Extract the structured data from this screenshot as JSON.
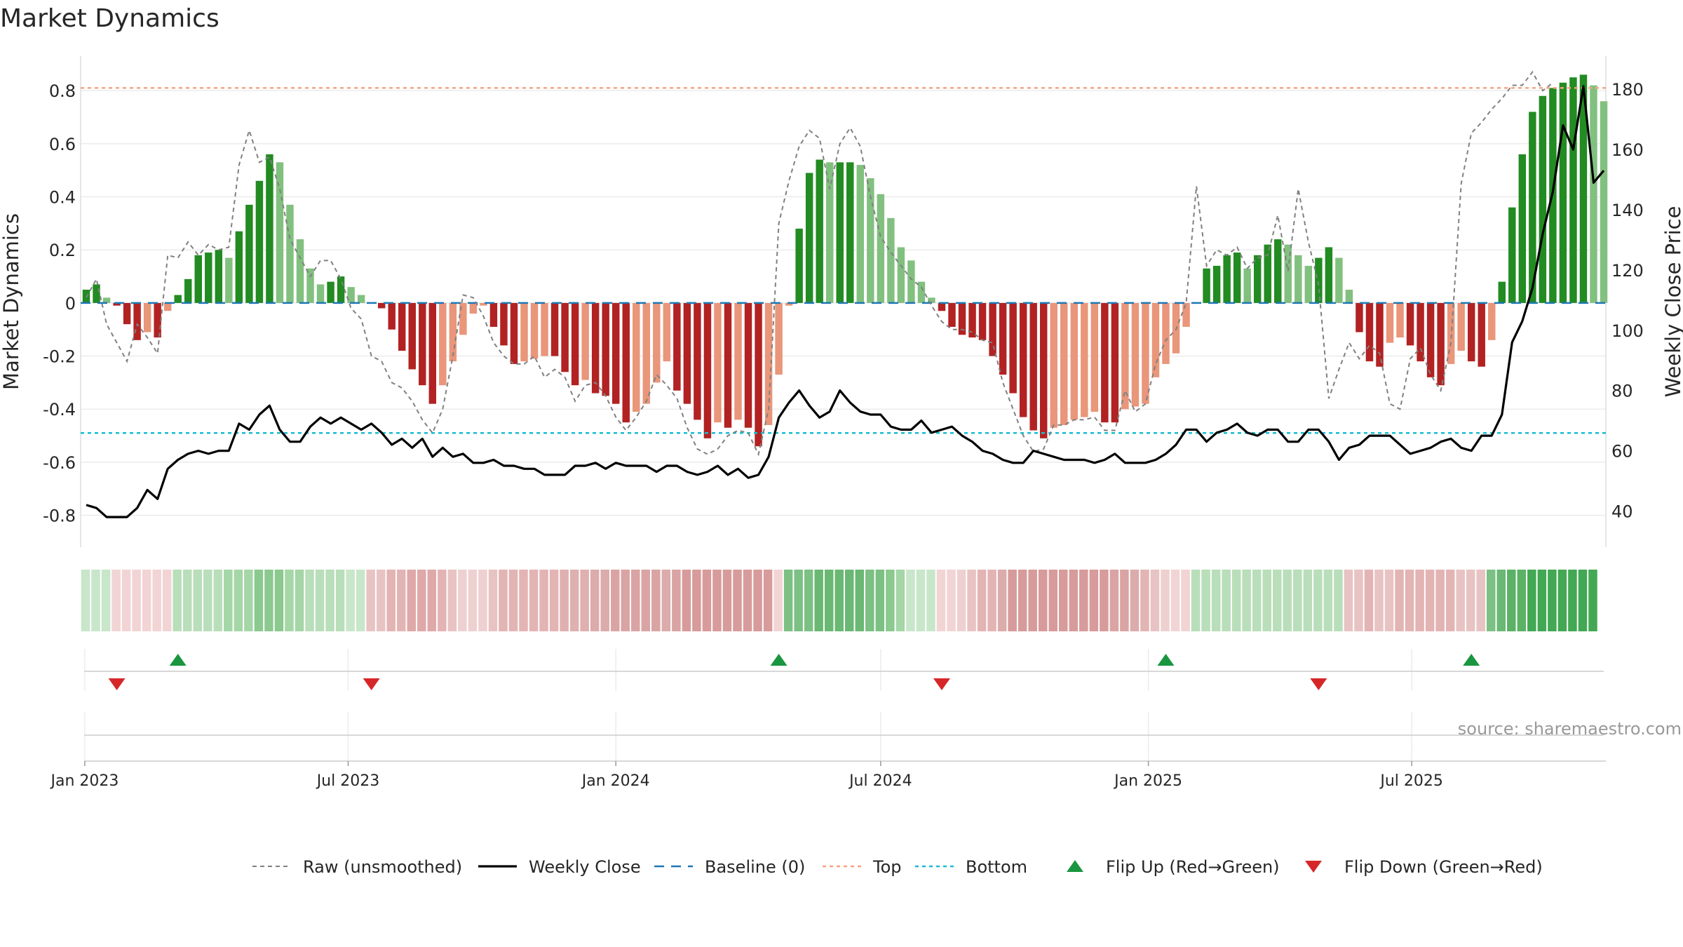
{
  "chart_data": {
    "type": "bar",
    "title": "Market Dynamics",
    "ylabel": "Market Dynamics",
    "y2label": "Weekly Close Price",
    "source": "source: sharemaestro.com",
    "ylim": [
      -0.92,
      0.93
    ],
    "y2lim": [
      28,
      191
    ],
    "x_start": "2023-01-02",
    "x_step_days": 7,
    "x_ticks": [
      {
        "date": "2023-01-01",
        "label": "Jan 2023"
      },
      {
        "date": "2023-07-01",
        "label": "Jul 2023"
      },
      {
        "date": "2024-01-01",
        "label": "Jan 2024"
      },
      {
        "date": "2024-07-01",
        "label": "Jul 2024"
      },
      {
        "date": "2025-01-01",
        "label": "Jan 2025"
      },
      {
        "date": "2025-07-01",
        "label": "Jul 2025"
      }
    ],
    "y_ticks": [
      "-0.8",
      "-0.6",
      "-0.4",
      "-0.2",
      "0",
      "0.2",
      "0.4",
      "0.6",
      "0.8"
    ],
    "y2_ticks": [
      "40",
      "60",
      "80",
      "100",
      "120",
      "140",
      "160",
      "180"
    ],
    "top_level": 0.81,
    "bottom_level": -0.49,
    "colors": {
      "strong_green": "#228b22",
      "light_green": "#82c07f",
      "strong_red": "#b22222",
      "light_red": "#e9967a",
      "price": "#000000",
      "raw": "#808080",
      "baseline": "#1f77b4",
      "top": "#f4a582",
      "bottom": "#17becf",
      "flip_up": "#1a9641",
      "flip_down": "#d62728"
    },
    "series": [
      {
        "name": "Market Dynamics",
        "values": [
          0.05,
          0.07,
          0.02,
          -0.01,
          -0.08,
          -0.14,
          -0.11,
          -0.13,
          -0.03,
          0.03,
          0.09,
          0.18,
          0.19,
          0.2,
          0.17,
          0.27,
          0.37,
          0.46,
          0.56,
          0.53,
          0.37,
          0.24,
          0.13,
          0.07,
          0.08,
          0.1,
          0.06,
          0.03,
          0,
          -0.02,
          -0.1,
          -0.18,
          -0.25,
          -0.31,
          -0.38,
          -0.31,
          -0.22,
          -0.12,
          -0.04,
          -0.01,
          -0.09,
          -0.16,
          -0.23,
          -0.22,
          -0.21,
          -0.2,
          -0.2,
          -0.26,
          -0.31,
          -0.29,
          -0.34,
          -0.35,
          -0.38,
          -0.45,
          -0.41,
          -0.38,
          -0.3,
          -0.22,
          -0.33,
          -0.38,
          -0.44,
          -0.51,
          -0.45,
          -0.47,
          -0.44,
          -0.47,
          -0.54,
          -0.46,
          -0.27,
          -0.01,
          0.28,
          0.49,
          0.54,
          0.53,
          0.53,
          0.53,
          0.52,
          0.47,
          0.41,
          0.32,
          0.21,
          0.16,
          0.08,
          0.02,
          -0.03,
          -0.09,
          -0.12,
          -0.13,
          -0.14,
          -0.2,
          -0.27,
          -0.34,
          -0.43,
          -0.48,
          -0.51,
          -0.47,
          -0.46,
          -0.44,
          -0.43,
          -0.41,
          -0.45,
          -0.45,
          -0.4,
          -0.39,
          -0.38,
          -0.28,
          -0.23,
          -0.19,
          -0.09,
          0.0,
          0.13,
          0.14,
          0.18,
          0.19,
          0.13,
          0.18,
          0.22,
          0.24,
          0.22,
          0.18,
          0.14,
          0.17,
          0.21,
          0.17,
          0.05,
          -0.11,
          -0.22,
          -0.24,
          -0.15,
          -0.13,
          -0.16,
          -0.22,
          -0.28,
          -0.31,
          -0.23,
          -0.18,
          -0.22,
          -0.24,
          -0.14,
          0.08,
          0.36,
          0.56,
          0.72,
          0.78,
          0.81,
          0.83,
          0.85,
          0.86,
          0.82,
          0.76
        ]
      },
      {
        "name": "Raw (unsmoothed)",
        "values": [
          0.02,
          0.09,
          -0.08,
          -0.15,
          -0.22,
          -0.08,
          -0.13,
          -0.19,
          0.18,
          0.17,
          0.23,
          0.18,
          0.22,
          0.2,
          0.21,
          0.52,
          0.65,
          0.53,
          0.55,
          0.43,
          0.24,
          0.17,
          0.1,
          0.16,
          0.16,
          0.09,
          -0.02,
          -0.06,
          -0.2,
          -0.22,
          -0.3,
          -0.32,
          -0.37,
          -0.44,
          -0.49,
          -0.4,
          -0.2,
          0.03,
          0.02,
          -0.05,
          -0.15,
          -0.2,
          -0.23,
          -0.23,
          -0.2,
          -0.28,
          -0.25,
          -0.28,
          -0.37,
          -0.31,
          -0.3,
          -0.35,
          -0.43,
          -0.48,
          -0.43,
          -0.37,
          -0.27,
          -0.31,
          -0.36,
          -0.47,
          -0.55,
          -0.57,
          -0.55,
          -0.5,
          -0.48,
          -0.49,
          -0.57,
          -0.4,
          0.3,
          0.46,
          0.59,
          0.65,
          0.62,
          0.43,
          0.6,
          0.66,
          0.59,
          0.4,
          0.25,
          0.19,
          0.14,
          0.09,
          0.06,
          -0.01,
          -0.07,
          -0.1,
          -0.1,
          -0.11,
          -0.14,
          -0.15,
          -0.3,
          -0.4,
          -0.5,
          -0.56,
          -0.55,
          -0.46,
          -0.46,
          -0.44,
          -0.44,
          -0.43,
          -0.48,
          -0.48,
          -0.33,
          -0.41,
          -0.38,
          -0.23,
          -0.14,
          -0.1,
          0.0,
          0.44,
          0.14,
          0.2,
          0.18,
          0.21,
          0.13,
          0.17,
          0.18,
          0.33,
          0.12,
          0.43,
          0.23,
          0.07,
          -0.36,
          -0.25,
          -0.15,
          -0.21,
          -0.16,
          -0.19,
          -0.38,
          -0.4,
          -0.21,
          -0.17,
          -0.27,
          -0.33,
          -0.15,
          0.45,
          0.64,
          0.68,
          0.73,
          0.77,
          0.82,
          0.82,
          0.87,
          0.8,
          0.83
        ]
      },
      {
        "name": "Weekly Close",
        "values": [
          42,
          41,
          38,
          38,
          38,
          41,
          47,
          44,
          54,
          57,
          59,
          60,
          59,
          60,
          60,
          69,
          67,
          72,
          75,
          67,
          63,
          63,
          68,
          71,
          69,
          71,
          69,
          67,
          69,
          66,
          62,
          64,
          61,
          64,
          58,
          61,
          58,
          59,
          56,
          56,
          57,
          55,
          55,
          54,
          54,
          52,
          52,
          52,
          55,
          55,
          56,
          54,
          56,
          55,
          55,
          55,
          53,
          55,
          55,
          53,
          52,
          53,
          55,
          52,
          54,
          51,
          52,
          58,
          71,
          76,
          80,
          75,
          71,
          73,
          80,
          76,
          73,
          72,
          72,
          68,
          67,
          67,
          70,
          66,
          67,
          68,
          65,
          63,
          60,
          59,
          57,
          56,
          56,
          60,
          59,
          58,
          57,
          57,
          57,
          56,
          57,
          59,
          56,
          56,
          56,
          57,
          59,
          62,
          67,
          67,
          63,
          66,
          67,
          69,
          66,
          65,
          67,
          67,
          63,
          63,
          67,
          67,
          63,
          57,
          61,
          62,
          65,
          65,
          65,
          62,
          59,
          60,
          61,
          63,
          64,
          61,
          60,
          65,
          65,
          72,
          96,
          103,
          114,
          132,
          146,
          168,
          160,
          181,
          149,
          153
        ]
      }
    ]
  },
  "strip": {
    "colors": [
      "#c8e6c9",
      "#c8e6c9",
      "#c8e6c9",
      "#f2d4d4",
      "#f2d4d4",
      "#f2d4d4",
      "#f2d4d4",
      "#f2d4d4",
      "#f2d4d4",
      "#b9deba",
      "#b9deba",
      "#b9deba",
      "#b9deba",
      "#b9deba",
      "#a5d6a7",
      "#a5d6a7",
      "#a5d6a7",
      "#8bc98e",
      "#8bc98e",
      "#8bc98e",
      "#a5d6a7",
      "#a5d6a7",
      "#b9deba",
      "#b9deba",
      "#b9deba",
      "#b9deba",
      "#c8e6c9",
      "#c8e6c9",
      "#e8c3c3",
      "#e8c3c3",
      "#e3b4b4",
      "#e3b4b4",
      "#dfa9a9",
      "#dfa9a9",
      "#dfa9a9",
      "#e3b4b4",
      "#e8c3c3",
      "#eed0d0",
      "#eed0d0",
      "#eed0d0",
      "#e8c3c3",
      "#e3b4b4",
      "#e3b4b4",
      "#e3b4b4",
      "#e3b4b4",
      "#e3b4b4",
      "#e3b4b4",
      "#dfb0b0",
      "#dfb0b0",
      "#dfb0b0",
      "#dcabab",
      "#dcabab",
      "#daa4a4",
      "#daa4a4",
      "#daa4a4",
      "#daa4a4",
      "#daa4a4",
      "#dcabab",
      "#daa4a4",
      "#d79b9b",
      "#d79b9b",
      "#d79b9b",
      "#d79b9b",
      "#d79b9b",
      "#d79b9b",
      "#d79b9b",
      "#d79b9b",
      "#d79b9b",
      "#f2d4d4",
      "#7cc084",
      "#7cc084",
      "#7cc084",
      "#6ab874",
      "#6ab874",
      "#6ab874",
      "#6ab874",
      "#6ab874",
      "#7cc084",
      "#7cc084",
      "#8bc98e",
      "#a5d6a7",
      "#c8e6c9",
      "#c8e6c9",
      "#c8e6c9",
      "#f2d4d4",
      "#f2d4d4",
      "#eed0d0",
      "#e8c3c3",
      "#e3b4b4",
      "#e3b4b4",
      "#dcabab",
      "#d79b9b",
      "#d79b9b",
      "#d79b9b",
      "#d79b9b",
      "#d79b9b",
      "#d79b9b",
      "#d79b9b",
      "#d79b9b",
      "#d79b9b",
      "#d79b9b",
      "#daa4a4",
      "#daa4a4",
      "#dcabab",
      "#e3b4b4",
      "#e8c3c3",
      "#eed0d0",
      "#f2d4d4",
      "#f2d4d4",
      "#b9deba",
      "#b9deba",
      "#b9deba",
      "#b9deba",
      "#b9deba",
      "#b9deba",
      "#b9deba",
      "#b9deba",
      "#b9deba",
      "#b9deba",
      "#b9deba",
      "#b9deba",
      "#b9deba",
      "#b9deba",
      "#b9deba",
      "#e8c3c3",
      "#e8c3c3",
      "#e3b4b4",
      "#e8c3c3",
      "#e8c3c3",
      "#e3b4b4",
      "#e3b4b4",
      "#e3b4b4",
      "#e3b4b4",
      "#e3b4b4",
      "#e3b4b4",
      "#e8c3c3",
      "#e8c3c3",
      "#e8c3c3",
      "#7cc084",
      "#6ab874",
      "#5bb266",
      "#5bb266",
      "#43a854",
      "#43a854",
      "#43a854",
      "#43a854",
      "#43a854",
      "#43a854",
      "#43a854"
    ]
  },
  "flips": [
    {
      "index": 3,
      "dir": "down"
    },
    {
      "index": 9,
      "dir": "up"
    },
    {
      "index": 28,
      "dir": "down"
    },
    {
      "index": 68,
      "dir": "up"
    },
    {
      "index": 84,
      "dir": "down"
    },
    {
      "index": 106,
      "dir": "up"
    },
    {
      "index": 121,
      "dir": "down"
    },
    {
      "index": 136,
      "dir": "up"
    }
  ],
  "legend": [
    {
      "type": "raw",
      "label": "Raw (unsmoothed)"
    },
    {
      "type": "close",
      "label": "Weekly Close"
    },
    {
      "type": "baseline",
      "label": "Baseline (0)"
    },
    {
      "type": "top",
      "label": "Top"
    },
    {
      "type": "bottom",
      "label": "Bottom"
    },
    {
      "type": "flipup",
      "label": "Flip Up (Red→Green)"
    },
    {
      "type": "flipdown",
      "label": "Flip Down (Green→Red)"
    }
  ]
}
